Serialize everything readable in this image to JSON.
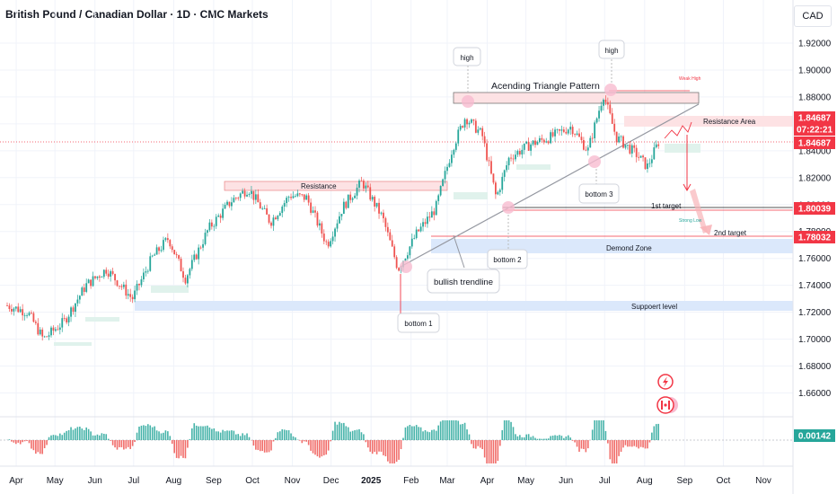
{
  "title": "British Pound / Canadian Dollar · 1D · CMC Markets",
  "currency_button": "CAD",
  "colors": {
    "up": "#26a69a",
    "down": "#ef5350",
    "text": "#131722",
    "grid": "#f0f3fa",
    "label_red": "#f23645",
    "trendline": "#9598a1"
  },
  "chart_data": {
    "type": "candlestick",
    "title": "British Pound / Canadian Dollar · 1D · CMC Markets",
    "ylim": [
      1.645,
      1.932
    ],
    "y_ticks": [
      "1.92000",
      "1.90000",
      "1.88000",
      "1.86000",
      "1.84000",
      "1.82000",
      "1.80000",
      "1.78000",
      "1.76000",
      "1.74000",
      "1.72000",
      "1.70000",
      "1.68000",
      "1.66000"
    ],
    "x_ticks": [
      "Apr",
      "May",
      "Jun",
      "Jul",
      "Aug",
      "Sep",
      "Oct",
      "Nov",
      "Dec",
      "2025",
      "Feb",
      "Mar",
      "Apr",
      "May",
      "Jun",
      "Jul",
      "Aug",
      "Sep",
      "Oct",
      "Nov"
    ],
    "price_path": [
      {
        "date": "2024-03-25",
        "close": 1.725
      },
      {
        "date": "2024-04-10",
        "close": 1.72
      },
      {
        "date": "2024-04-22",
        "close": 1.7
      },
      {
        "date": "2024-05-08",
        "close": 1.713
      },
      {
        "date": "2024-05-25",
        "close": 1.74
      },
      {
        "date": "2024-06-10",
        "close": 1.752
      },
      {
        "date": "2024-06-30",
        "close": 1.73
      },
      {
        "date": "2024-07-15",
        "close": 1.76
      },
      {
        "date": "2024-07-28",
        "close": 1.775
      },
      {
        "date": "2024-08-10",
        "close": 1.745
      },
      {
        "date": "2024-08-28",
        "close": 1.782
      },
      {
        "date": "2024-09-15",
        "close": 1.803
      },
      {
        "date": "2024-09-28",
        "close": 1.812
      },
      {
        "date": "2024-10-15",
        "close": 1.787
      },
      {
        "date": "2024-10-30",
        "close": 1.807
      },
      {
        "date": "2024-11-12",
        "close": 1.805
      },
      {
        "date": "2024-11-28",
        "close": 1.77
      },
      {
        "date": "2024-12-10",
        "close": 1.798
      },
      {
        "date": "2024-12-25",
        "close": 1.817
      },
      {
        "date": "2025-01-10",
        "close": 1.79
      },
      {
        "date": "2025-01-22",
        "close": 1.752
      },
      {
        "date": "2025-02-05",
        "close": 1.778
      },
      {
        "date": "2025-02-20",
        "close": 1.797
      },
      {
        "date": "2025-03-05",
        "close": 1.842
      },
      {
        "date": "2025-03-15",
        "close": 1.865
      },
      {
        "date": "2025-03-28",
        "close": 1.852
      },
      {
        "date": "2025-04-08",
        "close": 1.805
      },
      {
        "date": "2025-04-18",
        "close": 1.835
      },
      {
        "date": "2025-05-05",
        "close": 1.845
      },
      {
        "date": "2025-05-20",
        "close": 1.85
      },
      {
        "date": "2025-06-05",
        "close": 1.858
      },
      {
        "date": "2025-06-18",
        "close": 1.84
      },
      {
        "date": "2025-06-30",
        "close": 1.882
      },
      {
        "date": "2025-07-10",
        "close": 1.85
      },
      {
        "date": "2025-07-25",
        "close": 1.838
      },
      {
        "date": "2025-08-03",
        "close": 1.828
      },
      {
        "date": "2025-08-12",
        "close": 1.847
      }
    ],
    "price_labels": [
      {
        "value": "1.84687",
        "color": "#f23645"
      },
      {
        "value": "07:22:21",
        "color": "#f23645"
      },
      {
        "value": "1.84687",
        "color": "#f23645"
      },
      {
        "value": "1.80039",
        "color": "#f23645"
      },
      {
        "value": "1.78032",
        "color": "#f23645"
      }
    ],
    "oscillator_label": "0.00142",
    "levels": [
      {
        "name": "1st target",
        "value": 1.80039
      },
      {
        "name": "2nd target",
        "value": 1.78032
      },
      {
        "name": "last price",
        "value": 1.84687
      }
    ],
    "annotations": [
      "Acending Triangle Pattern",
      "Resistance Area",
      "Resistance",
      "Demond Zone",
      "Suppoert level",
      "bullish trendline",
      "1st target",
      "2nd target",
      "Weak High",
      "Strong Low",
      "high",
      "high",
      "bottom 1",
      "bottom 2",
      "bottom 3"
    ]
  },
  "annotations": {
    "pattern": "Acending Triangle Pattern",
    "resistance_area": "Resistance Area",
    "resistance": "Resistance",
    "demand": "Demond Zone",
    "support": "Suppoert level",
    "trendline": "bullish trendline",
    "target1": "1st target",
    "target2": "2nd target",
    "weak_high": "Weak High",
    "strong_low": "Strong Low",
    "high1": "high",
    "high2": "high",
    "bottom1": "bottom 1",
    "bottom2": "bottom 2",
    "bottom3": "bottom 3"
  }
}
